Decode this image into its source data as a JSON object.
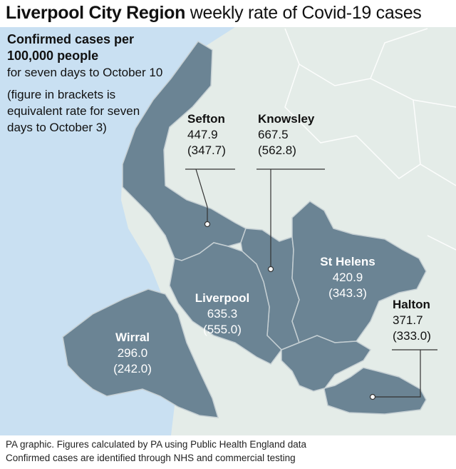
{
  "title": {
    "bold": "Liverpool City Region",
    "rest": " weekly rate of Covid-19 cases"
  },
  "intro": {
    "heading": "Confirmed cases per 100,000 people",
    "period": "for seven days to October 10",
    "note": "(figure in brackets is equivalent rate for seven days to October 3)"
  },
  "regions": {
    "sefton": {
      "name": "Sefton",
      "rate": "447.9",
      "previous": "(347.7)"
    },
    "knowsley": {
      "name": "Knowsley",
      "rate": "667.5",
      "previous": "(562.8)"
    },
    "st_helens": {
      "name": "St Helens",
      "rate": "420.9",
      "previous": "(343.3)"
    },
    "halton": {
      "name": "Halton",
      "rate": "371.7",
      "previous": "(333.0)"
    },
    "liverpool": {
      "name": "Liverpool",
      "rate": "635.3",
      "previous": "(555.0)"
    },
    "wirral": {
      "name": "Wirral",
      "rate": "296.0",
      "previous": "(242.0)"
    }
  },
  "footer": {
    "line1": "PA graphic. Figures calculated by PA using Public Health England data",
    "line2": "Confirmed cases are identified through NHS and commercial testing"
  },
  "colors": {
    "sea": "#c9e0f2",
    "land": "#e4ece8",
    "region": "#6b8494",
    "boundary": "#c5cfd3",
    "leader": "#333333"
  }
}
